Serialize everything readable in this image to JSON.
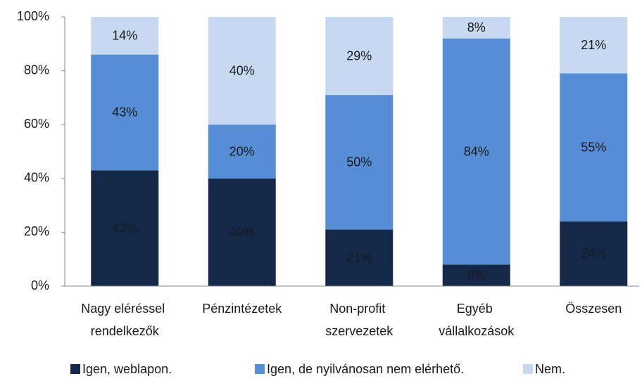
{
  "chart_data": {
    "type": "stacked_bar",
    "categories": [
      "Nagy eléréssel rendelkezők",
      "Pénzintézetek",
      "Non-profit szervezetek",
      "Egyéb vállalkozások",
      "Összesen"
    ],
    "series": [
      {
        "name": "Igen, weblapon.",
        "color": "#14294a",
        "label_color": "#ffffff",
        "values": [
          43,
          40,
          21,
          8,
          24
        ],
        "value_labels": [
          "43%",
          "40%",
          "21%",
          "8%",
          "24%"
        ]
      },
      {
        "name": "Igen, de nyilvánosan nem elérhető.",
        "color": "#558ed5",
        "label_color": "#1a1a1a",
        "values": [
          43,
          20,
          50,
          84,
          55
        ],
        "value_labels": [
          "43%",
          "20%",
          "50%",
          "84%",
          "55%"
        ]
      },
      {
        "name": "Nem.",
        "color": "#c6d9f1",
        "label_color": "#1a1a1a",
        "values": [
          14,
          40,
          29,
          8,
          21
        ],
        "value_labels": [
          "14%",
          "40%",
          "29%",
          "8%",
          "21%"
        ]
      }
    ],
    "ylim": [
      0,
      100
    ],
    "yticks": [
      {
        "value": 0,
        "label": "0%"
      },
      {
        "value": 20,
        "label": "20%"
      },
      {
        "value": 40,
        "label": "40%"
      },
      {
        "value": 60,
        "label": "60%"
      },
      {
        "value": 80,
        "label": "80%"
      },
      {
        "value": 100,
        "label": "100%"
      }
    ],
    "legend": "bottom"
  }
}
